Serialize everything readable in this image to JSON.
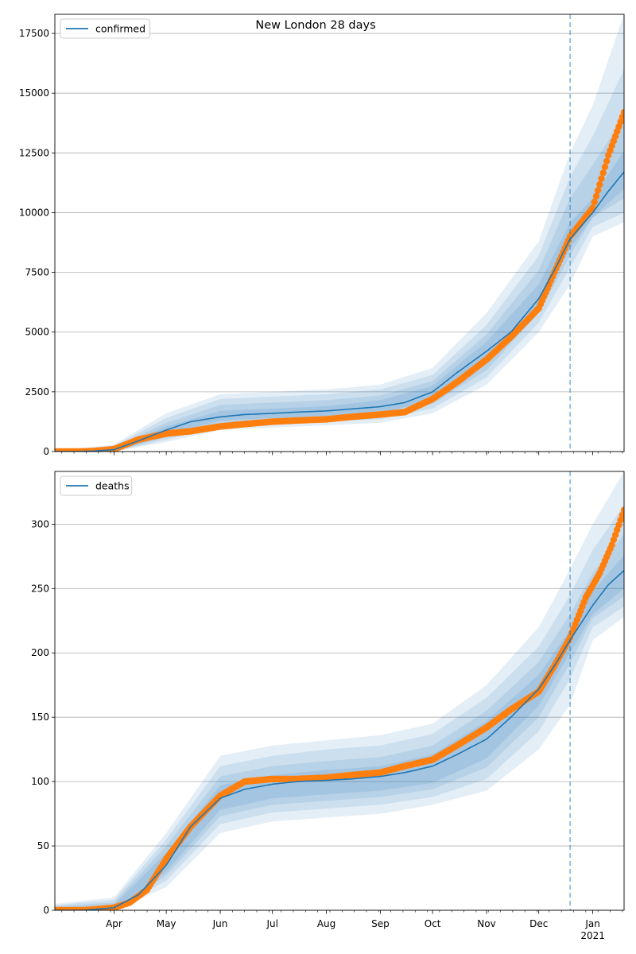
{
  "figure": {
    "title": "New London 28 days"
  },
  "chart_data": [
    {
      "type": "line",
      "title": "New London 28 days",
      "legend": [
        "confirmed"
      ],
      "legend_position": "top-left",
      "grid": "horizontal",
      "x_range": [
        "2020-02-27",
        "2021-01-19"
      ],
      "ylim": [
        0,
        18300
      ],
      "y_ticks": [
        "0",
        "2500",
        "5000",
        "7500",
        "10000",
        "12500",
        "15000",
        "17500"
      ],
      "x_ticks": [
        "Apr",
        "May",
        "Jun",
        "Jul",
        "Aug",
        "Sep",
        "Oct",
        "Nov",
        "Dec",
        "Jan\n2021"
      ],
      "forecast_start": "2020-12-19",
      "series": [
        {
          "name": "confirmed",
          "kind": "model median",
          "color": "#1f77b4",
          "x": [
            "2020-02-27",
            "2020-03-10",
            "2020-03-20",
            "2020-04-01",
            "2020-04-15",
            "2020-05-01",
            "2020-05-15",
            "2020-06-01",
            "2020-06-15",
            "2020-07-01",
            "2020-07-15",
            "2020-08-01",
            "2020-08-15",
            "2020-09-01",
            "2020-09-15",
            "2020-10-01",
            "2020-10-15",
            "2020-11-01",
            "2020-11-15",
            "2020-12-01",
            "2020-12-10",
            "2020-12-19",
            "2021-01-01",
            "2021-01-10",
            "2021-01-19"
          ],
          "values": [
            0,
            0,
            20,
            80,
            450,
            900,
            1250,
            1450,
            1550,
            1600,
            1650,
            1700,
            1780,
            1880,
            2050,
            2500,
            3300,
            4200,
            5000,
            6400,
            7600,
            8900,
            10000,
            10900,
            11700
          ]
        },
        {
          "name": "observed",
          "kind": "observed points",
          "color": "#ff7f0e",
          "x": [
            "2020-02-27",
            "2020-03-10",
            "2020-03-20",
            "2020-04-01",
            "2020-04-15",
            "2020-05-01",
            "2020-05-15",
            "2020-06-01",
            "2020-06-15",
            "2020-07-01",
            "2020-07-15",
            "2020-08-01",
            "2020-08-15",
            "2020-09-01",
            "2020-09-15",
            "2020-10-01",
            "2020-10-15",
            "2020-11-01",
            "2020-11-15",
            "2020-12-01",
            "2020-12-10",
            "2020-12-19",
            "2021-01-01",
            "2021-01-10",
            "2021-01-19"
          ],
          "values": [
            0,
            0,
            20,
            100,
            500,
            750,
            850,
            1050,
            1150,
            1250,
            1300,
            1350,
            1450,
            1550,
            1650,
            2200,
            2900,
            3850,
            4800,
            6000,
            7500,
            9000,
            10200,
            12400,
            14200
          ]
        }
      ],
      "band": {
        "x": [
          "2020-02-27",
          "2020-04-01",
          "2020-05-01",
          "2020-06-01",
          "2020-07-01",
          "2020-08-01",
          "2020-09-01",
          "2020-10-01",
          "2020-11-01",
          "2020-12-01",
          "2020-12-19",
          "2021-01-01",
          "2021-01-19"
        ],
        "bounds": [
          {
            "low": [
              0,
              0,
              400,
              900,
              1000,
              1100,
              1200,
              1600,
              2800,
              5000,
              7000,
              9000,
              9600
            ],
            "high": [
              0,
              300,
              1600,
              2400,
              2500,
              2600,
              2800,
              3500,
              5800,
              8800,
              12500,
              14500,
              18300
            ]
          },
          {
            "low": [
              0,
              0,
              500,
              1050,
              1150,
              1250,
              1350,
              1800,
              3100,
              5400,
              7700,
              9400,
              10000
            ],
            "high": [
              0,
              250,
              1400,
              2200,
              2300,
              2400,
              2600,
              3200,
              5300,
              8200,
              11500,
              13200,
              16000
            ]
          },
          {
            "low": [
              0,
              0,
              600,
              1200,
              1300,
              1400,
              1500,
              2000,
              3400,
              5800,
              8200,
              9800,
              10600
            ],
            "high": [
              0,
              200,
              1200,
              1950,
              2050,
              2150,
              2350,
              2950,
              4900,
              7600,
              10600,
              12000,
              14000
            ]
          },
          {
            "low": [
              0,
              0,
              700,
              1300,
              1400,
              1500,
              1600,
              2150,
              3700,
              6100,
              8500,
              9800,
              11000
            ],
            "high": [
              0,
              150,
              1050,
              1700,
              1800,
              1900,
              2150,
              2750,
              4600,
              7000,
              9600,
              10600,
              12600
            ]
          }
        ]
      }
    },
    {
      "type": "line",
      "legend": [
        "deaths"
      ],
      "legend_position": "top-left",
      "grid": "horizontal",
      "x_range": [
        "2020-02-27",
        "2021-01-19"
      ],
      "ylim": [
        0,
        341
      ],
      "y_ticks": [
        "0",
        "50",
        "100",
        "150",
        "200",
        "250",
        "300"
      ],
      "x_ticks": [
        "Apr",
        "May",
        "Jun",
        "Jul",
        "Aug",
        "Sep",
        "Oct",
        "Nov",
        "Dec",
        "Jan\n2021"
      ],
      "forecast_start": "2020-12-19",
      "series": [
        {
          "name": "deaths",
          "kind": "model median",
          "color": "#1f77b4",
          "x": [
            "2020-02-27",
            "2020-03-15",
            "2020-04-01",
            "2020-04-15",
            "2020-05-01",
            "2020-05-15",
            "2020-06-01",
            "2020-06-15",
            "2020-07-01",
            "2020-07-15",
            "2020-08-01",
            "2020-08-15",
            "2020-09-01",
            "2020-09-15",
            "2020-10-01",
            "2020-10-15",
            "2020-11-01",
            "2020-11-15",
            "2020-12-01",
            "2020-12-10",
            "2020-12-19",
            "2021-01-01",
            "2021-01-10",
            "2021-01-19"
          ],
          "values": [
            0,
            0,
            2,
            12,
            35,
            65,
            87,
            94,
            98,
            100,
            101,
            102,
            104,
            107,
            112,
            121,
            133,
            150,
            172,
            190,
            210,
            237,
            253,
            264
          ]
        },
        {
          "name": "observed",
          "kind": "observed points",
          "color": "#ff7f0e",
          "x": [
            "2020-02-27",
            "2020-03-15",
            "2020-04-01",
            "2020-04-10",
            "2020-04-20",
            "2020-05-01",
            "2020-05-15",
            "2020-06-01",
            "2020-06-15",
            "2020-07-01",
            "2020-07-15",
            "2020-08-01",
            "2020-08-15",
            "2020-09-01",
            "2020-09-15",
            "2020-10-01",
            "2020-10-15",
            "2020-11-01",
            "2020-11-15",
            "2020-12-01",
            "2020-12-10",
            "2020-12-19",
            "2020-12-28",
            "2021-01-05",
            "2021-01-12",
            "2021-01-19"
          ],
          "values": [
            0,
            0,
            2,
            6,
            16,
            40,
            65,
            89,
            100,
            102,
            102,
            103,
            105,
            107,
            112,
            117,
            128,
            142,
            156,
            170,
            190,
            212,
            243,
            262,
            284,
            311
          ]
        }
      ],
      "band": {
        "x": [
          "2020-02-27",
          "2020-04-01",
          "2020-05-01",
          "2020-06-01",
          "2020-07-01",
          "2020-08-01",
          "2020-09-01",
          "2020-10-01",
          "2020-11-01",
          "2020-12-01",
          "2020-12-19",
          "2021-01-01",
          "2021-01-19"
        ],
        "bounds": [
          {
            "low": [
              0,
              0,
              18,
              60,
              69,
              72,
              75,
              82,
              93,
              125,
              160,
              210,
              228
            ],
            "high": [
              5,
              10,
              60,
              120,
              128,
              132,
              136,
              145,
              175,
              220,
              265,
              300,
              341
            ]
          },
          {
            "low": [
              0,
              0,
              23,
              67,
              76,
              79,
              82,
              88,
              102,
              139,
              180,
              220,
              236
            ],
            "high": [
              4,
              8,
              55,
              112,
              120,
              125,
              128,
              137,
              165,
              205,
              245,
              280,
              315
            ]
          },
          {
            "low": [
              0,
              0,
              27,
              73,
              82,
              85,
              88,
              94,
              111,
              150,
              192,
              227,
              244
            ],
            "high": [
              3,
              6,
              50,
              104,
              112,
              116,
              119,
              128,
              155,
              193,
              230,
              262,
              292
            ]
          },
          {
            "low": [
              0,
              0,
              30,
              78,
              87,
              90,
              93,
              99,
              118,
              159,
              200,
              230,
              250
            ],
            "high": [
              2,
              4,
              45,
              97,
              105,
              109,
              112,
              121,
              147,
              183,
              218,
              248,
              276
            ]
          }
        ]
      }
    }
  ]
}
